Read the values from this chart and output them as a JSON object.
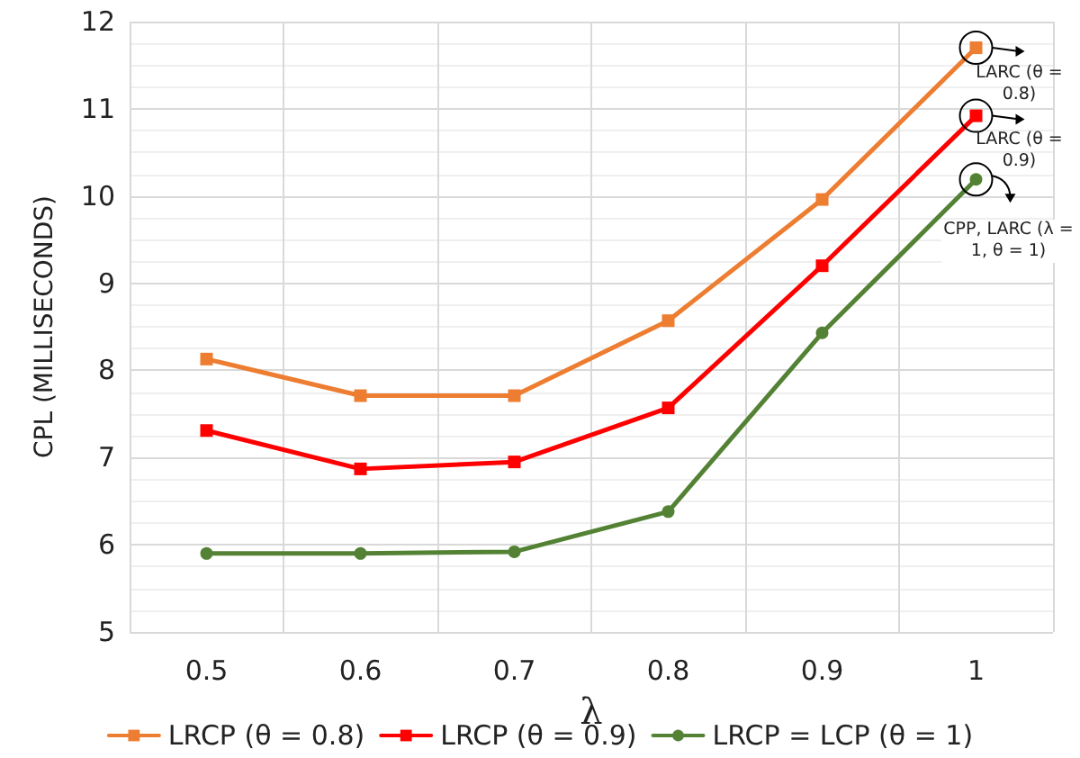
{
  "chart_data": {
    "type": "line",
    "xlabel": "λ",
    "ylabel": "CPL (MILLISECONDS)",
    "categories": [
      "0.5",
      "0.6",
      "0.7",
      "0.8",
      "0.9",
      "1"
    ],
    "series": [
      {
        "name": "LRCP (θ = 0.8)",
        "color": "#ed7d31",
        "marker": "square",
        "values": [
          8.13,
          7.71,
          7.71,
          8.57,
          9.96,
          11.7
        ]
      },
      {
        "name": "LRCP (θ = 0.9)",
        "color": "#ff0000",
        "marker": "square",
        "values": [
          7.31,
          6.87,
          6.95,
          7.57,
          9.2,
          10.92
        ]
      },
      {
        "name": "LRCP = LCP (θ = 1)",
        "color": "#548235",
        "marker": "circle",
        "values": [
          5.9,
          5.9,
          5.92,
          6.38,
          8.43,
          10.19
        ]
      }
    ],
    "ylim": [
      5,
      12
    ],
    "yticks": [
      5,
      6,
      7,
      8,
      9,
      10,
      11,
      12
    ],
    "grid": true,
    "legend": "bottom",
    "line_style": "solid",
    "annotations": [
      {
        "text": "LARC (θ = 0.8)",
        "x": "1",
        "y": 11.7
      },
      {
        "text": "LARC (θ = 0.9)",
        "x": "1",
        "y": 10.92
      },
      {
        "text": "CPP, LARC (λ = 1, θ = 1)",
        "x": "1",
        "y": 10.19
      }
    ]
  }
}
